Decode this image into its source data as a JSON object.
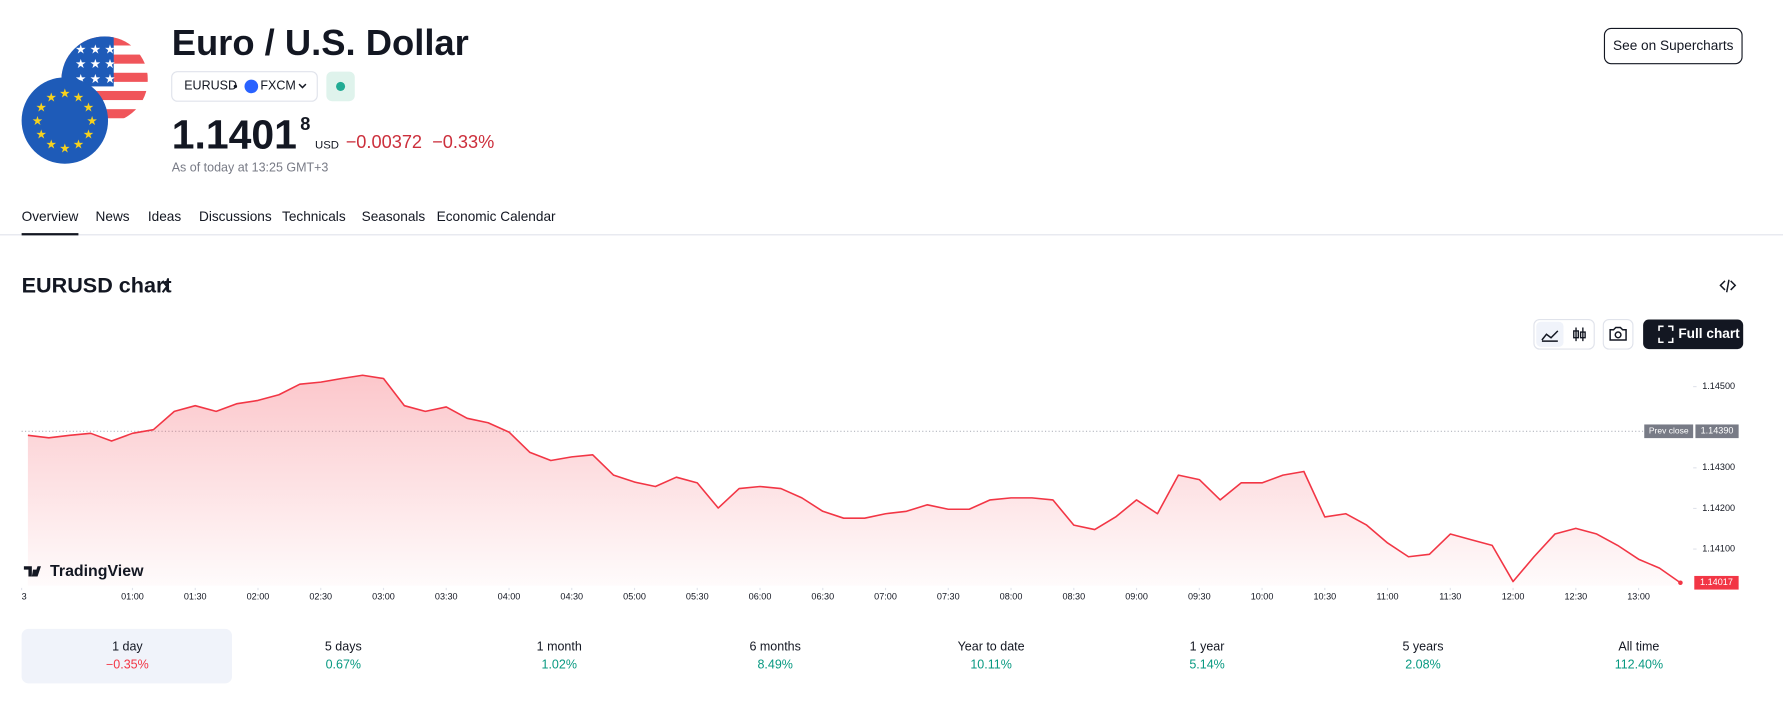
{
  "header": {
    "title": "Euro / U.S. Dollar",
    "symbol": "EURUSD",
    "exchange": "FXCM",
    "price": "1.1401",
    "price_last_digit": "8",
    "currency": "USD",
    "change": "−0.00372",
    "change_percent": "−0.33%",
    "as_of": "As of today at 13:25 GMT+3",
    "button": "See on Supercharts"
  },
  "tabs": [
    "Overview",
    "News",
    "Ideas",
    "Discussions",
    "Technicals",
    "Seasonals",
    "Economic Calendar"
  ],
  "chart_section": {
    "title": "EURUSD chart",
    "full_chart": "Full chart",
    "logo": "TradingView"
  },
  "chart_data": {
    "type": "line",
    "color": "#f23645",
    "x": [
      "00:10",
      "00:20",
      "00:30",
      "00:40",
      "00:50",
      "01:00",
      "01:10",
      "01:20",
      "01:30",
      "01:40",
      "01:50",
      "02:00",
      "02:10",
      "02:20",
      "02:30",
      "02:40",
      "02:50",
      "03:00",
      "03:10",
      "03:20",
      "03:30",
      "03:40",
      "03:50",
      "04:00",
      "04:10",
      "04:20",
      "04:30",
      "04:40",
      "04:50",
      "05:00",
      "05:10",
      "05:20",
      "05:30",
      "05:40",
      "05:50",
      "06:00",
      "06:10",
      "06:20",
      "06:30",
      "06:40",
      "06:50",
      "07:00",
      "07:10",
      "07:20",
      "07:30",
      "07:40",
      "07:50",
      "08:00",
      "08:10",
      "08:20",
      "08:30",
      "08:40",
      "08:50",
      "09:00",
      "09:10",
      "09:20",
      "09:30",
      "09:40",
      "09:50",
      "10:00",
      "10:10",
      "10:20",
      "10:30",
      "10:40",
      "10:50",
      "11:00",
      "11:10",
      "11:20",
      "11:30",
      "11:40",
      "11:50",
      "12:00",
      "12:10",
      "12:20",
      "12:30",
      "12:40",
      "12:50",
      "13:00",
      "13:10",
      "13:20"
    ],
    "values": [
      1.1438,
      1.14374,
      1.1438,
      1.14385,
      1.14366,
      1.14385,
      1.14394,
      1.14439,
      1.14453,
      1.14439,
      1.14458,
      1.14466,
      1.1448,
      1.14506,
      1.14511,
      1.1452,
      1.14528,
      1.1452,
      1.14453,
      1.14439,
      1.1445,
      1.14422,
      1.14411,
      1.14388,
      1.14338,
      1.14318,
      1.14327,
      1.14332,
      1.14282,
      1.14265,
      1.14254,
      1.14277,
      1.14263,
      1.14201,
      1.14249,
      1.14254,
      1.14249,
      1.14226,
      1.14193,
      1.14176,
      1.14176,
      1.14187,
      1.14193,
      1.14209,
      1.14198,
      1.14198,
      1.14221,
      1.14226,
      1.14226,
      1.14221,
      1.14159,
      1.14148,
      1.14179,
      1.14221,
      1.14187,
      1.14282,
      1.14271,
      1.14221,
      1.14263,
      1.14263,
      1.14282,
      1.14291,
      1.14179,
      1.14187,
      1.14159,
      1.14115,
      1.14081,
      1.14087,
      1.14137,
      1.14123,
      1.14109,
      1.1402,
      1.14081,
      1.14137,
      1.14151,
      1.14137,
      1.14109,
      1.14075,
      1.14053,
      1.14017
    ],
    "xlim": [
      "00:07",
      "13:25"
    ],
    "xticks": [
      {
        "value": "00:00",
        "label": "3"
      },
      "01:00",
      "01:30",
      "02:00",
      "02:30",
      "03:00",
      "03:30",
      "04:00",
      "04:30",
      "05:00",
      "05:30",
      "06:00",
      "06:30",
      "07:00",
      "07:30",
      "08:00",
      "08:30",
      "09:00",
      "09:30",
      "10:00",
      "10:30",
      "11:00",
      "11:30",
      "12:00",
      "12:30",
      "13:00"
    ],
    "ylim": [
      1.1401,
      1.1457
    ],
    "yticks": [
      {
        "value": 1.145,
        "label": "1.14500"
      },
      {
        "value": 1.143,
        "label": "1.14300"
      },
      {
        "value": 1.142,
        "label": "1.14200"
      },
      {
        "value": 1.141,
        "label": "1.14100"
      }
    ],
    "prev_close": {
      "label": "Prev close",
      "value": 1.1439,
      "value_label": "1.14390"
    }
  },
  "periods": [
    {
      "label": "1 day",
      "change": "−0.35%"
    },
    {
      "label": "5 days",
      "change": "0.67%"
    },
    {
      "label": "1 month",
      "change": "1.02%"
    },
    {
      "label": "6 months",
      "change": "8.49%"
    },
    {
      "label": "Year to date",
      "change": "10.11%"
    },
    {
      "label": "1 year",
      "change": "5.14%"
    },
    {
      "label": "5 years",
      "change": "2.08%"
    },
    {
      "label": "All time",
      "change": "112.40%"
    }
  ]
}
